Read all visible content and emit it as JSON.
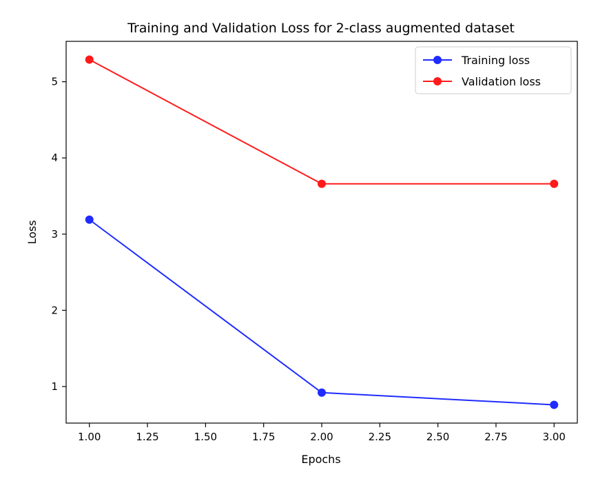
{
  "chart_data": {
    "type": "line",
    "title": "Training and Validation Loss for 2-class augmented dataset",
    "xlabel": "Epochs",
    "ylabel": "Loss",
    "x": [
      1.0,
      2.0,
      3.0
    ],
    "series": [
      {
        "name": "Training loss",
        "color": "#1f2bff",
        "values": [
          3.19,
          0.92,
          0.76
        ]
      },
      {
        "name": "Validation loss",
        "color": "#ff1a1a",
        "values": [
          5.29,
          3.66,
          3.66
        ]
      }
    ],
    "xlim": [
      0.9,
      3.1
    ],
    "ylim": [
      0.52,
      5.53
    ],
    "xticks": [
      "1.00",
      "1.25",
      "1.50",
      "1.75",
      "2.00",
      "2.25",
      "2.50",
      "2.75",
      "3.00"
    ],
    "yticks": [
      "1",
      "2",
      "3",
      "4",
      "5"
    ],
    "grid": false,
    "legend_position": "top-right",
    "marker": "circle"
  }
}
